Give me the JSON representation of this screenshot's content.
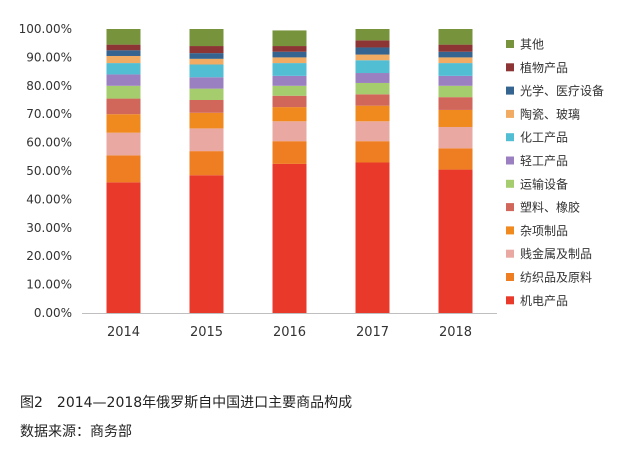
{
  "caption": {
    "figure": "图2　2014—2018年俄罗斯自中国进口主要商品构成",
    "source": "数据来源：商务部"
  },
  "chart_data": {
    "type": "bar",
    "stacked": true,
    "categories": [
      "2014",
      "2015",
      "2016",
      "2017",
      "2018"
    ],
    "ylim": [
      0,
      100
    ],
    "y_ticks": [
      "0.00%",
      "10.00%",
      "20.00%",
      "30.00%",
      "40.00%",
      "50.00%",
      "60.00%",
      "70.00%",
      "80.00%",
      "90.00%",
      "100.00%"
    ],
    "grid": false,
    "legend_position": "right",
    "series": [
      {
        "name": "机电产品",
        "color": "#e8392b",
        "values": [
          46.0,
          48.5,
          52.5,
          53.0,
          50.5
        ]
      },
      {
        "name": "纺织品及原料",
        "color": "#ef7d22",
        "values": [
          9.5,
          8.5,
          8.0,
          7.5,
          7.5
        ]
      },
      {
        "name": "贱金属及制品",
        "color": "#e9a9a2",
        "values": [
          8.0,
          8.0,
          7.0,
          7.0,
          7.5
        ]
      },
      {
        "name": "杂项制品",
        "color": "#f0891e",
        "values": [
          6.5,
          5.5,
          5.0,
          5.5,
          6.0
        ]
      },
      {
        "name": "塑料、橡胶",
        "color": "#d0675a",
        "values": [
          5.5,
          4.5,
          4.0,
          4.0,
          4.5
        ]
      },
      {
        "name": "运输设备",
        "color": "#a6cd6d",
        "values": [
          4.5,
          4.0,
          3.5,
          4.0,
          4.0
        ]
      },
      {
        "name": "轻工产品",
        "color": "#9b80c1",
        "values": [
          4.0,
          4.0,
          3.5,
          3.5,
          3.5
        ]
      },
      {
        "name": "化工产品",
        "color": "#52bed4",
        "values": [
          4.0,
          4.5,
          4.5,
          4.5,
          4.5
        ]
      },
      {
        "name": "陶瓷、玻璃",
        "color": "#f2ab62",
        "values": [
          2.5,
          2.0,
          2.0,
          2.0,
          2.0
        ]
      },
      {
        "name": "光学、医疗设备",
        "color": "#34648f",
        "values": [
          2.0,
          2.0,
          2.0,
          2.5,
          2.0
        ]
      },
      {
        "name": "植物产品",
        "color": "#8c3534",
        "values": [
          2.0,
          2.5,
          2.0,
          2.5,
          2.5
        ]
      },
      {
        "name": "其他",
        "color": "#77933c",
        "values": [
          5.5,
          6.0,
          5.5,
          4.0,
          5.5
        ]
      }
    ]
  }
}
